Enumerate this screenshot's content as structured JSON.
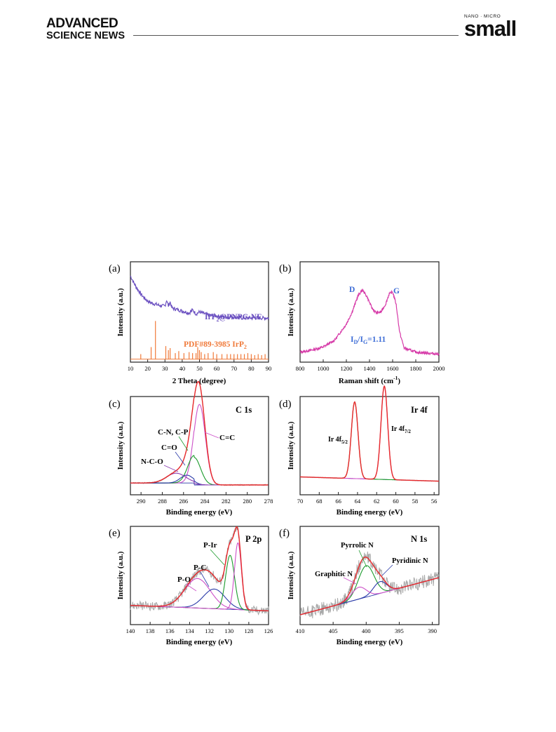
{
  "header": {
    "brand_top": "ADVANCED",
    "brand_bottom": "SCIENCE NEWS",
    "journal_small": "NANO · MICRO",
    "journal_name": "small"
  },
  "colors": {
    "xrd_sample": "#6a4fc0",
    "xrd_ref": "#f07a3a",
    "raman": "#d63aa8",
    "raman_label": "#3b6bd6",
    "raw": "#a8a8a8",
    "fit_total": "#e8292b",
    "fit_green": "#1a9a2b",
    "fit_pink": "#cc4fc8",
    "fit_blue": "#2a3aa8",
    "fit_purple": "#8a3ab0"
  },
  "chart_data": [
    {
      "panel": "(a)",
      "type": "line",
      "xlabel": "2 Theta (degree)",
      "ylabel": "Intensity (a.u.)",
      "xlim": [
        10,
        90
      ],
      "xticks": [
        "10",
        "20",
        "30",
        "40",
        "50",
        "60",
        "70",
        "80",
        "90"
      ],
      "series": [
        {
          "name": "IrP2@PNPC-NF",
          "x": [
            10,
            12,
            14,
            16,
            18,
            20,
            22,
            24,
            26,
            28,
            30,
            31,
            32,
            33,
            34,
            36,
            38,
            40,
            42,
            44,
            46,
            48,
            50,
            55,
            60,
            65,
            70,
            75,
            80,
            85,
            90
          ],
          "y": [
            0.86,
            0.79,
            0.73,
            0.68,
            0.64,
            0.61,
            0.59,
            0.58,
            0.57,
            0.56,
            0.56,
            0.62,
            0.56,
            0.6,
            0.54,
            0.53,
            0.52,
            0.51,
            0.5,
            0.49,
            0.52,
            0.48,
            0.5,
            0.47,
            0.46,
            0.45,
            0.45,
            0.44,
            0.44,
            0.44,
            0.44
          ]
        },
        {
          "name": "PDF#89-3985 IrP2",
          "sticks": [
            [
              16,
              0.05
            ],
            [
              22,
              0.12
            ],
            [
              24.5,
              0.38
            ],
            [
              30.5,
              0.13
            ],
            [
              32,
              0.09
            ],
            [
              33,
              0.11
            ],
            [
              36,
              0.06
            ],
            [
              38,
              0.08
            ],
            [
              41,
              0.06
            ],
            [
              44,
              0.07
            ],
            [
              46,
              0.06
            ],
            [
              48,
              0.06
            ],
            [
              49,
              0.12
            ],
            [
              50,
              0.09
            ],
            [
              51,
              0.07
            ],
            [
              53,
              0.05
            ],
            [
              55,
              0.06
            ],
            [
              58,
              0.07
            ],
            [
              60,
              0.05
            ],
            [
              63,
              0.05
            ],
            [
              66,
              0.05
            ],
            [
              68,
              0.05
            ],
            [
              70,
              0.05
            ],
            [
              72,
              0.05
            ],
            [
              74,
              0.05
            ],
            [
              76,
              0.05
            ],
            [
              78,
              0.06
            ],
            [
              80,
              0.05
            ],
            [
              82,
              0.04
            ],
            [
              84,
              0.05
            ],
            [
              86,
              0.04
            ],
            [
              88,
              0.05
            ]
          ]
        }
      ],
      "labels": [
        "IrP",
        "2",
        "@PNPC-NF",
        "PDF#89-3985 IrP",
        "2"
      ]
    },
    {
      "panel": "(b)",
      "type": "line",
      "xlabel": "Raman shift (cm",
      "xlabel_sup": "-1",
      "xlabel_end": ")",
      "ylabel": "Intensity (a.u.)",
      "xlim": [
        800,
        2000
      ],
      "xticks": [
        "800",
        "1000",
        "1200",
        "1400",
        "1600",
        "1800",
        "2000"
      ],
      "series": [
        {
          "name": "Raman",
          "x": [
            800,
            900,
            1000,
            1100,
            1200,
            1250,
            1300,
            1340,
            1380,
            1420,
            1460,
            1500,
            1540,
            1570,
            1600,
            1630,
            1660,
            1700,
            1800,
            1900,
            2000
          ],
          "y": [
            0.1,
            0.12,
            0.15,
            0.22,
            0.38,
            0.5,
            0.66,
            0.72,
            0.65,
            0.54,
            0.49,
            0.5,
            0.58,
            0.68,
            0.7,
            0.58,
            0.3,
            0.14,
            0.1,
            0.09,
            0.08
          ]
        }
      ],
      "peaks": [
        {
          "label": "D",
          "x": 1340
        },
        {
          "label": "G",
          "x": 1600
        }
      ],
      "annotation": {
        "prefix": "I",
        "sub1": "D",
        "slash": "/I",
        "sub2": "G",
        "value": "=1.11"
      }
    },
    {
      "panel": "(c)",
      "type": "line",
      "title": "C 1s",
      "xlabel": "Binding energy (eV)",
      "ylabel": "Intensity (a.u.)",
      "xlim": [
        291,
        278
      ],
      "xticks": [
        "290",
        "288",
        "286",
        "284",
        "282",
        "280",
        "278"
      ],
      "components": [
        {
          "name": "C=C",
          "center": 284.5,
          "height": 0.82,
          "width": 0.55
        },
        {
          "name": "C-N, C-P",
          "center": 285.0,
          "height": 0.28,
          "width": 0.6
        },
        {
          "name": "C=O",
          "center": 285.7,
          "height": 0.08,
          "width": 0.6
        },
        {
          "name": "N-C-O",
          "center": 286.7,
          "height": 0.1,
          "width": 0.9
        }
      ],
      "labels": [
        "C=C",
        "C-N, C-P",
        "C=O",
        "N-C-O"
      ]
    },
    {
      "panel": "(d)",
      "type": "line",
      "title": "Ir 4f",
      "xlabel": "Binding energy (eV)",
      "ylabel": "Intensity (a.u.)",
      "xlim": [
        70,
        55.5
      ],
      "xticks": [
        "70",
        "68",
        "66",
        "64",
        "62",
        "60",
        "58",
        "56"
      ],
      "components": [
        {
          "name": "Ir 4f5/2",
          "center": 64.3,
          "height": 0.78,
          "width": 0.35
        },
        {
          "name": "Ir 4f7/2",
          "center": 61.2,
          "height": 0.95,
          "width": 0.35
        }
      ],
      "labels": [
        {
          "main": "Ir 4f",
          "sub": "5/2"
        },
        {
          "main": "Ir 4f",
          "sub": "7/2"
        }
      ]
    },
    {
      "panel": "(e)",
      "type": "line",
      "title": "P 2p",
      "xlabel": "Binding energy (eV)",
      "ylabel": "Intensity (a.u.)",
      "xlim": [
        140,
        126
      ],
      "xticks": [
        "140",
        "138",
        "136",
        "134",
        "132",
        "130",
        "128",
        "126"
      ],
      "components": [
        {
          "name": "P-O",
          "center": 133.2,
          "height": 0.3,
          "width": 1.3
        },
        {
          "name": "P-C",
          "center": 131.5,
          "height": 0.2,
          "width": 1.1
        },
        {
          "name": "P-Ir",
          "center": 129.9,
          "height": 0.55,
          "width": 0.45
        },
        {
          "name": "P-Ir 2",
          "center": 129.1,
          "height": 0.68,
          "width": 0.35
        }
      ],
      "labels": [
        "P-Ir",
        "P-C",
        "P-O"
      ]
    },
    {
      "panel": "(f)",
      "type": "line",
      "title": "N 1s",
      "xlabel": "Binding energy (eV)",
      "ylabel": "Intensity (a.u.)",
      "xlim": [
        410,
        389
      ],
      "xticks": [
        "410",
        "405",
        "400",
        "395",
        "390"
      ],
      "components": [
        {
          "name": "Pyrrolic N",
          "center": 400.0,
          "height": 0.32,
          "width": 1.2
        },
        {
          "name": "Pyridinic N",
          "center": 397.9,
          "height": 0.12,
          "width": 1.0
        },
        {
          "name": "Graphitic N",
          "center": 401.1,
          "height": 0.12,
          "width": 1.1
        }
      ],
      "labels": [
        "Pyrrolic N",
        "Pyridinic N",
        "Graphitic N"
      ]
    }
  ]
}
